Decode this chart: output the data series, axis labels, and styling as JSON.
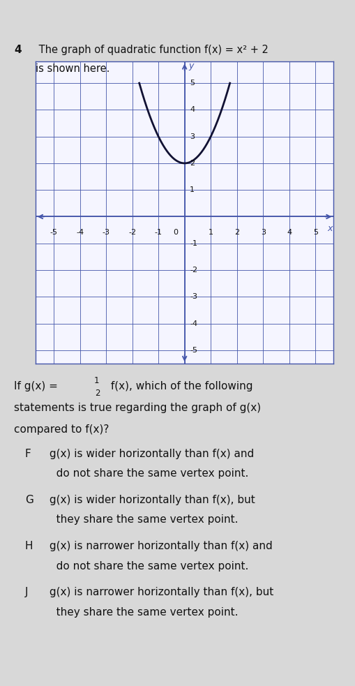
{
  "title_number": "4",
  "title_text": " The graph of quadratic function f(x) = x² + 2",
  "title_line2": "is shown here.",
  "bg_color": "#d8d8d8",
  "plot_bg_color": "#f5f5ff",
  "grid_color": "#4455aa",
  "curve_color": "#111133",
  "xlim": [
    -5.7,
    5.7
  ],
  "ylim": [
    -5.5,
    5.8
  ],
  "xticks": [
    -5,
    -4,
    -3,
    -2,
    -1,
    0,
    1,
    2,
    3,
    4,
    5
  ],
  "yticks": [
    -5,
    -4,
    -3,
    -2,
    -1,
    0,
    1,
    2,
    3,
    4,
    5
  ],
  "question_prefix": "If g(x) = ",
  "question_frac": "1",
  "question_frac_denom": "2",
  "question_mid": " f(x), which of the following",
  "question_line2": "statements is true regarding the graph of g(x)",
  "question_line3": "compared to f(x)?",
  "option_F_label": "F",
  "option_F_line1": " g(x) is wider horizontally than f(x) and",
  "option_F_line2": "   do not share the same vertex point.",
  "option_G_label": "G",
  "option_G_line1": " g(x) is wider horizontally than f(x), but",
  "option_G_line2": "   they share the same vertex point.",
  "option_H_label": "H",
  "option_H_line1": " g(x) is narrower horizontally than f(x) and",
  "option_H_line2": "   do not share the same vertex point.",
  "option_J_label": "J",
  "option_J_line1": " g(x) is narrower horizontally than f(x), but",
  "option_J_line2": "   they share the same vertex point.",
  "fig_width": 5.09,
  "fig_height": 9.83,
  "dpi": 100
}
